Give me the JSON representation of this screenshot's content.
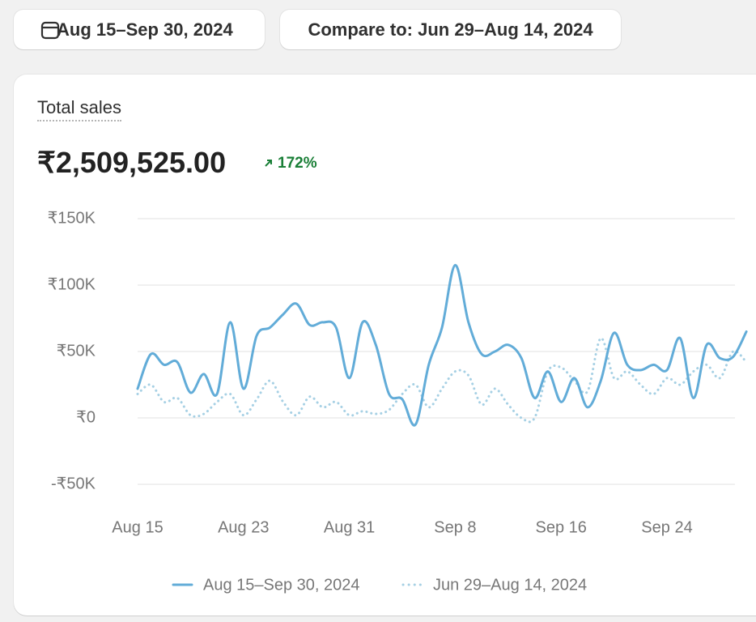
{
  "date_range": "Aug 15–Sep 30, 2024",
  "compare_button": "Compare to: Jun 29–Aug 14, 2024",
  "chart_data": {
    "type": "line",
    "title": "Total sales",
    "total": "₹2,509,525.00",
    "change": "172%",
    "categories": [
      "Aug 15",
      null,
      null,
      null,
      null,
      null,
      null,
      null,
      "Aug 23",
      null,
      null,
      null,
      null,
      null,
      null,
      null,
      "Aug 31",
      null,
      null,
      null,
      null,
      null,
      null,
      null,
      "Sep 8",
      null,
      null,
      null,
      null,
      null,
      null,
      null,
      "Sep 16",
      null,
      null,
      null,
      null,
      null,
      null,
      null,
      "Sep 24",
      null,
      null,
      null,
      null,
      null,
      null
    ],
    "series": [
      {
        "name": "Aug 15–Sep 30, 2024",
        "color": "#62acd8",
        "style": "solid",
        "values": [
          22000,
          48000,
          40000,
          42000,
          19000,
          33000,
          18000,
          72000,
          22000,
          62000,
          68000,
          78000,
          86000,
          70000,
          72000,
          68000,
          30000,
          72000,
          55000,
          18000,
          14000,
          -5000,
          40000,
          68000,
          115000,
          72000,
          48000,
          50000,
          55000,
          45000,
          15000,
          35000,
          12000,
          30000,
          8000,
          28000,
          64000,
          40000,
          36000,
          40000,
          36000,
          60000,
          15000,
          55000,
          45000,
          46000,
          65000
        ]
      },
      {
        "name": "Jun 29–Aug 14, 2024",
        "color": "#a6d0e4",
        "style": "dotted",
        "values": [
          18000,
          25000,
          12000,
          15000,
          2000,
          3000,
          12000,
          18000,
          2000,
          14000,
          28000,
          12000,
          2000,
          16000,
          8000,
          12000,
          2000,
          5000,
          3000,
          6000,
          18000,
          25000,
          8000,
          22000,
          35000,
          32000,
          10000,
          22000,
          10000,
          0,
          0,
          35000,
          38000,
          28000,
          20000,
          60000,
          30000,
          35000,
          25000,
          18000,
          30000,
          25000,
          35000,
          40000,
          30000,
          50000,
          42000
        ]
      }
    ],
    "ylim": [
      -50000,
      150000
    ],
    "yticks": [
      {
        "value": -50000,
        "label": "-₹50K"
      },
      {
        "value": 0,
        "label": "₹0"
      },
      {
        "value": 50000,
        "label": "₹50K"
      },
      {
        "value": 100000,
        "label": "₹100K"
      },
      {
        "value": 150000,
        "label": "₹150K"
      }
    ],
    "grid": true,
    "legend": "bottom"
  }
}
